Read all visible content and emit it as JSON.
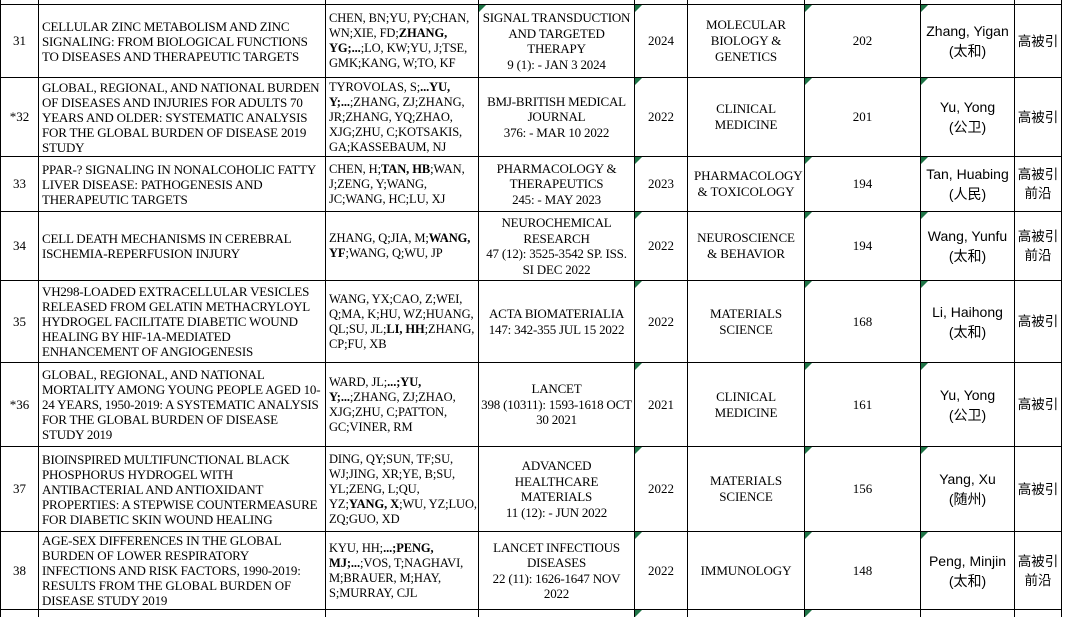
{
  "colors": {
    "indicator_green": "#1E7446",
    "grid_border": "#000000",
    "background": "#FFFFFF",
    "text": "#000000"
  },
  "table": {
    "columns": [
      "row_number",
      "title",
      "authors",
      "journal",
      "year",
      "category",
      "citations",
      "attributed_author",
      "tags"
    ],
    "rows": [
      {
        "num": "31",
        "title": "CELLULAR ZINC METABOLISM AND ZINC SIGNALING: FROM BIOLOGICAL FUNCTIONS TO DISEASES AND THERAPEUTIC TARGETS",
        "authors": [
          {
            "text": "CHEN, BN;YU, PY;CHAN, WN;XIE, FD;",
            "bold": false
          },
          {
            "text": "ZHANG, YG;...",
            "bold": true
          },
          {
            "text": ";LO, KW;YU, J;TSE, GMK;KANG, W;TO, KF",
            "bold": false
          }
        ],
        "journal_lines": [
          "SIGNAL TRANSDUCTION AND TARGETED THERAPY",
          "9 (1): - JAN 3 2024"
        ],
        "year": "2024",
        "category": "MOLECULAR BIOLOGY & GENETICS",
        "citations": "202",
        "author_name": "Zhang, Yigan",
        "author_affiliation": "(太和)",
        "tags": [
          "高被引"
        ],
        "markers": {
          "journal": true,
          "year": true,
          "citations": true,
          "name": true
        }
      },
      {
        "num": "*32",
        "title": "GLOBAL, REGIONAL, AND NATIONAL BURDEN OF DISEASES AND INJURIES FOR ADULTS 70 YEARS AND OLDER: SYSTEMATIC ANALYSIS FOR THE GLOBAL BURDEN OF DISEASE 2019 STUDY",
        "authors": [
          {
            "text": "TYROVOLAS, S;",
            "bold": false
          },
          {
            "text": "...YU, Y;...",
            "bold": true
          },
          {
            "text": ";ZHANG, ZJ;ZHANG, JR;ZHANG, YQ;ZHAO, XJG;ZHU, C;KOTSAKIS, GA;KASSEBAUM, NJ",
            "bold": false
          }
        ],
        "journal_lines": [
          "BMJ-BRITISH MEDICAL JOURNAL",
          "376: - MAR 10 2022"
        ],
        "year": "2022",
        "category": "CLINICAL MEDICINE",
        "citations": "201",
        "author_name": "Yu, Yong",
        "author_affiliation": "(公卫)",
        "tags": [
          "高被引"
        ],
        "markers": {
          "journal": false,
          "year": true,
          "citations": true,
          "name": true
        }
      },
      {
        "num": "33",
        "title": "PPAR-? SIGNALING IN NONALCOHOLIC FATTY LIVER DISEASE: PATHOGENESIS AND THERAPEUTIC TARGETS",
        "authors": [
          {
            "text": "CHEN, H;",
            "bold": false
          },
          {
            "text": "TAN, HB",
            "bold": true
          },
          {
            "text": ";WAN, J;ZENG, Y;WANG, JC;WANG, HC;LU, XJ",
            "bold": false
          }
        ],
        "journal_lines": [
          "PHARMACOLOGY & THERAPEUTICS",
          "245: - MAY 2023"
        ],
        "year": "2023",
        "category": "PHARMACOLOGY & TOXICOLOGY",
        "citations": "194",
        "author_name": "Tan, Huabing",
        "author_affiliation": "(人民)",
        "tags": [
          "高被引",
          "前沿"
        ],
        "markers": {
          "journal": false,
          "year": true,
          "citations": true,
          "name": true
        }
      },
      {
        "num": "34",
        "title": "CELL DEATH MECHANISMS IN CEREBRAL ISCHEMIA-REPERFUSION INJURY",
        "authors": [
          {
            "text": "ZHANG, Q;JIA, M;",
            "bold": false
          },
          {
            "text": "WANG, YF",
            "bold": true
          },
          {
            "text": ";WANG, Q;WU, JP",
            "bold": false
          }
        ],
        "journal_lines": [
          "NEUROCHEMICAL RESEARCH",
          "47 (12): 3525-3542 SP. ISS. SI DEC 2022"
        ],
        "year": "2022",
        "category": "NEUROSCIENCE & BEHAVIOR",
        "citations": "194",
        "author_name": "Wang, Yunfu",
        "author_affiliation": "(太和)",
        "tags": [
          "高被引",
          "前沿"
        ],
        "markers": {
          "journal": false,
          "year": true,
          "citations": true,
          "name": true
        }
      },
      {
        "num": "35",
        "title": "VH298-LOADED EXTRACELLULAR VESICLES RELEASED FROM GELATIN METHACRYLOYL HYDROGEL FACILITATE DIABETIC WOUND HEALING BY HIF-1A-MEDIATED ENHANCEMENT OF ANGIOGENESIS",
        "authors": [
          {
            "text": "WANG, YX;CAO, Z;WEI, Q;MA, K;HU, WZ;HUANG, QL;SU, JL;",
            "bold": false
          },
          {
            "text": "LI, HH",
            "bold": true
          },
          {
            "text": ";ZHANG, CP;FU, XB",
            "bold": false
          }
        ],
        "journal_lines": [
          "ACTA BIOMATERIALIA",
          "147: 342-355 JUL 15 2022"
        ],
        "year": "2022",
        "category": "MATERIALS SCIENCE",
        "citations": "168",
        "author_name": "Li, Haihong",
        "author_affiliation": "(太和)",
        "tags": [
          "高被引"
        ],
        "markers": {
          "journal": false,
          "year": true,
          "citations": true,
          "name": true
        }
      },
      {
        "num": "*36",
        "title": "GLOBAL, REGIONAL, AND NATIONAL MORTALITY AMONG YOUNG PEOPLE AGED 10-24 YEARS, 1950-2019: A SYSTEMATIC ANALYSIS FOR THE GLOBAL BURDEN OF DISEASE STUDY 2019",
        "authors": [
          {
            "text": "WARD, JL;",
            "bold": false
          },
          {
            "text": "...;YU, Y;...",
            "bold": true
          },
          {
            "text": ";ZHANG, ZJ;ZHAO, XJG;ZHU, C;PATTON, GC;VINER, RM",
            "bold": false
          }
        ],
        "journal_lines": [
          "LANCET",
          "398 (10311): 1593-1618 OCT 30 2021"
        ],
        "year": "2021",
        "category": "CLINICAL MEDICINE",
        "citations": "161",
        "author_name": "Yu, Yong",
        "author_affiliation": "(公卫)",
        "tags": [
          "高被引"
        ],
        "markers": {
          "journal": false,
          "year": true,
          "citations": true,
          "name": true
        }
      },
      {
        "num": "37",
        "title": "BIOINSPIRED MULTIFUNCTIONAL BLACK PHOSPHORUS HYDROGEL WITH ANTIBACTERIAL AND ANTIOXIDANT PROPERTIES: A STEPWISE COUNTERMEASURE FOR DIABETIC SKIN WOUND HEALING",
        "authors": [
          {
            "text": "DING, QY;SUN, TF;SU, WJ;JING, XR;YE, B;SU, YL;ZENG, L;QU, YZ;",
            "bold": false
          },
          {
            "text": "YANG, X",
            "bold": true
          },
          {
            "text": ";WU, YZ;LUO, ZQ;GUO, XD",
            "bold": false
          }
        ],
        "journal_lines": [
          "ADVANCED HEALTHCARE MATERIALS",
          "11 (12): - JUN 2022"
        ],
        "year": "2022",
        "category": "MATERIALS SCIENCE",
        "citations": "156",
        "author_name": "Yang, Xu",
        "author_affiliation": "(随州)",
        "tags": [
          "高被引"
        ],
        "markers": {
          "journal": false,
          "year": true,
          "citations": true,
          "name": true
        }
      },
      {
        "num": "38",
        "title": "AGE-SEX DIFFERENCES IN THE GLOBAL BURDEN OF LOWER RESPIRATORY INFECTIONS AND RISK FACTORS, 1990-2019: RESULTS FROM THE GLOBAL BURDEN OF DISEASE STUDY 2019",
        "authors": [
          {
            "text": "KYU, HH;",
            "bold": false
          },
          {
            "text": "...;PENG, MJ;...",
            "bold": true
          },
          {
            "text": ";VOS, T;NAGHAVI, M;BRAUER, M;HAY, S;MURRAY, CJL",
            "bold": false
          }
        ],
        "journal_lines": [
          "LANCET INFECTIOUS DISEASES",
          "22 (11): 1626-1647 NOV 2022"
        ],
        "year": "2022",
        "category": "IMMUNOLOGY",
        "citations": "148",
        "author_name": "Peng, Minjin",
        "author_affiliation": "(太和)",
        "tags": [
          "高被引",
          "前沿"
        ],
        "markers": {
          "journal": false,
          "year": true,
          "citations": true,
          "name": true
        }
      }
    ]
  }
}
